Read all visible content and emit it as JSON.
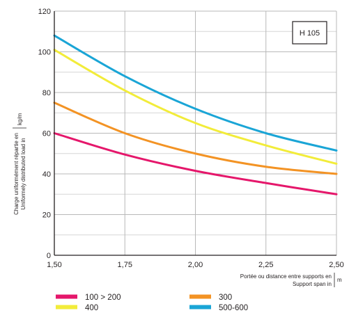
{
  "chart_data": {
    "type": "line",
    "label": "H 105",
    "xlabel": [
      "Portée ou distance entre supports en",
      "Support span in"
    ],
    "xunit": "m",
    "ylabel": [
      "Charge uniformément répartie en",
      "Uniformely distributed load in"
    ],
    "yunit": "kg/m",
    "xlim": [
      1.5,
      2.5
    ],
    "ylim": [
      0,
      120
    ],
    "xticks": [
      1.5,
      1.75,
      2.0,
      2.25,
      2.5
    ],
    "xtick_labels": [
      "1,50",
      "1,75",
      "2,00",
      "2,25",
      "2,50"
    ],
    "yticks": [
      0,
      20,
      40,
      60,
      80,
      100,
      120
    ],
    "ytick_labels": [
      "0",
      "20",
      "40",
      "60",
      "80",
      "100",
      "120"
    ],
    "grid": true,
    "legend_position": "bottom",
    "x": [
      1.5,
      1.75,
      2.0,
      2.25,
      2.5
    ],
    "series": [
      {
        "name": "100 > 200",
        "color": "#e5176b",
        "values": [
          60,
          49.5,
          41.5,
          35.5,
          30
        ]
      },
      {
        "name": "300",
        "color": "#f39324",
        "values": [
          75,
          60,
          50,
          43.5,
          40
        ]
      },
      {
        "name": "400",
        "color": "#f2ec3a",
        "values": [
          101,
          81,
          65,
          54,
          45
        ]
      },
      {
        "name": "500-600",
        "color": "#1aa5d6",
        "values": [
          108,
          88,
          72,
          60,
          51.5
        ]
      }
    ]
  }
}
